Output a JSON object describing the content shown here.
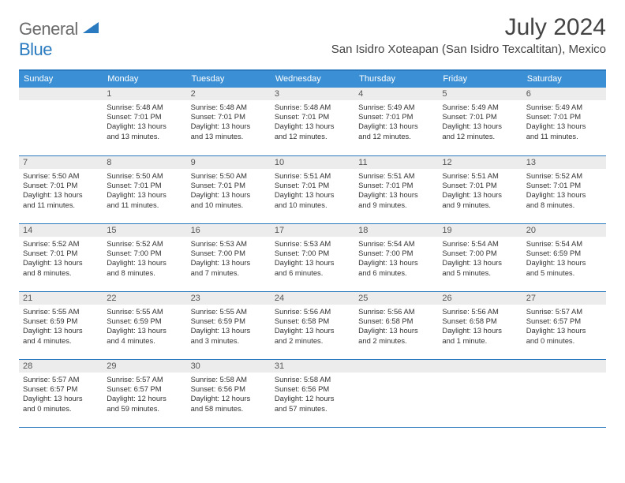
{
  "brand": {
    "word1": "General",
    "word2": "Blue"
  },
  "title": "July 2024",
  "location": "San Isidro Xoteapan (San Isidro Texcaltitan), Mexico",
  "colors": {
    "header_bg": "#3b8fd4",
    "border": "#2a7ac0",
    "daynum_bg": "#ececec",
    "text": "#333333",
    "title_text": "#444444"
  },
  "daysOfWeek": [
    "Sunday",
    "Monday",
    "Tuesday",
    "Wednesday",
    "Thursday",
    "Friday",
    "Saturday"
  ],
  "weeks": [
    [
      {
        "n": "",
        "t": ""
      },
      {
        "n": "1",
        "t": "Sunrise: 5:48 AM\nSunset: 7:01 PM\nDaylight: 13 hours\nand 13 minutes."
      },
      {
        "n": "2",
        "t": "Sunrise: 5:48 AM\nSunset: 7:01 PM\nDaylight: 13 hours\nand 13 minutes."
      },
      {
        "n": "3",
        "t": "Sunrise: 5:48 AM\nSunset: 7:01 PM\nDaylight: 13 hours\nand 12 minutes."
      },
      {
        "n": "4",
        "t": "Sunrise: 5:49 AM\nSunset: 7:01 PM\nDaylight: 13 hours\nand 12 minutes."
      },
      {
        "n": "5",
        "t": "Sunrise: 5:49 AM\nSunset: 7:01 PM\nDaylight: 13 hours\nand 12 minutes."
      },
      {
        "n": "6",
        "t": "Sunrise: 5:49 AM\nSunset: 7:01 PM\nDaylight: 13 hours\nand 11 minutes."
      }
    ],
    [
      {
        "n": "7",
        "t": "Sunrise: 5:50 AM\nSunset: 7:01 PM\nDaylight: 13 hours\nand 11 minutes."
      },
      {
        "n": "8",
        "t": "Sunrise: 5:50 AM\nSunset: 7:01 PM\nDaylight: 13 hours\nand 11 minutes."
      },
      {
        "n": "9",
        "t": "Sunrise: 5:50 AM\nSunset: 7:01 PM\nDaylight: 13 hours\nand 10 minutes."
      },
      {
        "n": "10",
        "t": "Sunrise: 5:51 AM\nSunset: 7:01 PM\nDaylight: 13 hours\nand 10 minutes."
      },
      {
        "n": "11",
        "t": "Sunrise: 5:51 AM\nSunset: 7:01 PM\nDaylight: 13 hours\nand 9 minutes."
      },
      {
        "n": "12",
        "t": "Sunrise: 5:51 AM\nSunset: 7:01 PM\nDaylight: 13 hours\nand 9 minutes."
      },
      {
        "n": "13",
        "t": "Sunrise: 5:52 AM\nSunset: 7:01 PM\nDaylight: 13 hours\nand 8 minutes."
      }
    ],
    [
      {
        "n": "14",
        "t": "Sunrise: 5:52 AM\nSunset: 7:01 PM\nDaylight: 13 hours\nand 8 minutes."
      },
      {
        "n": "15",
        "t": "Sunrise: 5:52 AM\nSunset: 7:00 PM\nDaylight: 13 hours\nand 8 minutes."
      },
      {
        "n": "16",
        "t": "Sunrise: 5:53 AM\nSunset: 7:00 PM\nDaylight: 13 hours\nand 7 minutes."
      },
      {
        "n": "17",
        "t": "Sunrise: 5:53 AM\nSunset: 7:00 PM\nDaylight: 13 hours\nand 6 minutes."
      },
      {
        "n": "18",
        "t": "Sunrise: 5:54 AM\nSunset: 7:00 PM\nDaylight: 13 hours\nand 6 minutes."
      },
      {
        "n": "19",
        "t": "Sunrise: 5:54 AM\nSunset: 7:00 PM\nDaylight: 13 hours\nand 5 minutes."
      },
      {
        "n": "20",
        "t": "Sunrise: 5:54 AM\nSunset: 6:59 PM\nDaylight: 13 hours\nand 5 minutes."
      }
    ],
    [
      {
        "n": "21",
        "t": "Sunrise: 5:55 AM\nSunset: 6:59 PM\nDaylight: 13 hours\nand 4 minutes."
      },
      {
        "n": "22",
        "t": "Sunrise: 5:55 AM\nSunset: 6:59 PM\nDaylight: 13 hours\nand 4 minutes."
      },
      {
        "n": "23",
        "t": "Sunrise: 5:55 AM\nSunset: 6:59 PM\nDaylight: 13 hours\nand 3 minutes."
      },
      {
        "n": "24",
        "t": "Sunrise: 5:56 AM\nSunset: 6:58 PM\nDaylight: 13 hours\nand 2 minutes."
      },
      {
        "n": "25",
        "t": "Sunrise: 5:56 AM\nSunset: 6:58 PM\nDaylight: 13 hours\nand 2 minutes."
      },
      {
        "n": "26",
        "t": "Sunrise: 5:56 AM\nSunset: 6:58 PM\nDaylight: 13 hours\nand 1 minute."
      },
      {
        "n": "27",
        "t": "Sunrise: 5:57 AM\nSunset: 6:57 PM\nDaylight: 13 hours\nand 0 minutes."
      }
    ],
    [
      {
        "n": "28",
        "t": "Sunrise: 5:57 AM\nSunset: 6:57 PM\nDaylight: 13 hours\nand 0 minutes."
      },
      {
        "n": "29",
        "t": "Sunrise: 5:57 AM\nSunset: 6:57 PM\nDaylight: 12 hours\nand 59 minutes."
      },
      {
        "n": "30",
        "t": "Sunrise: 5:58 AM\nSunset: 6:56 PM\nDaylight: 12 hours\nand 58 minutes."
      },
      {
        "n": "31",
        "t": "Sunrise: 5:58 AM\nSunset: 6:56 PM\nDaylight: 12 hours\nand 57 minutes."
      },
      {
        "n": "",
        "t": ""
      },
      {
        "n": "",
        "t": ""
      },
      {
        "n": "",
        "t": ""
      }
    ]
  ]
}
